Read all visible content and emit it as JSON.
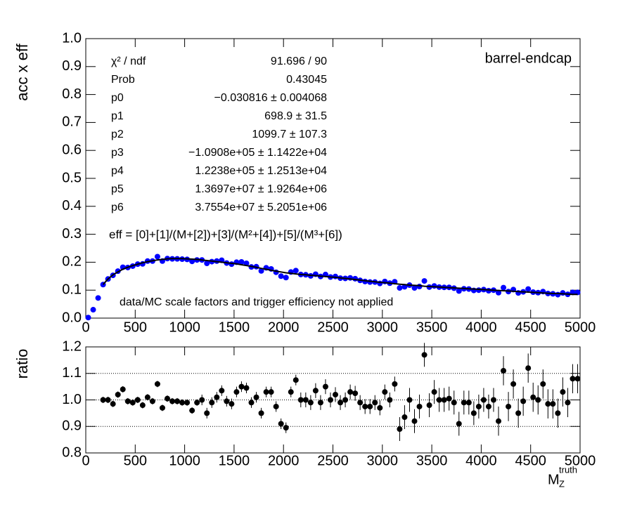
{
  "chart_data": [
    {
      "type": "scatter",
      "y_label": "acc x eff",
      "label": "barrel-endcap",
      "note": "data/MC scale factors and trigger efficiency not applied",
      "formula": "eff = [0]+[1]/(M+[2])+[3]/(M²+[4])+[5]/(M³+[6])",
      "stats": [
        [
          "χ² / ndf",
          "91.696 / 90"
        ],
        [
          "Prob",
          "0.43045"
        ],
        [
          "p0",
          "−0.030816 ± 0.004068"
        ],
        [
          "p1",
          "698.9 ± 31.5"
        ],
        [
          "p2",
          "1099.7 ± 107.3"
        ],
        [
          "p3",
          "−1.0908e+05 ± 1.1422e+04"
        ],
        [
          "p4",
          "1.2238e+05 ± 1.2513e+04"
        ],
        [
          "p5",
          "1.3697e+07 ± 1.9264e+06"
        ],
        [
          "p6",
          "3.7554e+07 ± 5.2051e+06"
        ]
      ],
      "xlim": [
        0,
        5000
      ],
      "xticks": [
        0,
        500,
        1000,
        1500,
        2000,
        2500,
        3000,
        3500,
        4000,
        4500,
        5000
      ],
      "ylim": [
        0,
        1
      ],
      "yticks": [
        {
          "value": 0,
          "label": "0.0"
        },
        0.1,
        0.2,
        0.3,
        0.4,
        0.5,
        0.6,
        0.7,
        0.8,
        0.9,
        {
          "value": 1,
          "label": "1.0"
        }
      ],
      "grid": false,
      "x": [
        25,
        75,
        125,
        175,
        225,
        275,
        325,
        375,
        425,
        475,
        525,
        575,
        625,
        675,
        725,
        775,
        825,
        875,
        925,
        975,
        1025,
        1075,
        1125,
        1175,
        1225,
        1275,
        1325,
        1375,
        1425,
        1475,
        1525,
        1575,
        1625,
        1675,
        1725,
        1775,
        1825,
        1875,
        1925,
        1975,
        2025,
        2075,
        2125,
        2175,
        2225,
        2275,
        2325,
        2375,
        2425,
        2475,
        2525,
        2575,
        2625,
        2675,
        2725,
        2775,
        2825,
        2875,
        2925,
        2975,
        3025,
        3075,
        3125,
        3175,
        3225,
        3275,
        3325,
        3375,
        3425,
        3475,
        3525,
        3575,
        3625,
        3675,
        3725,
        3775,
        3825,
        3875,
        3925,
        3975,
        4025,
        4075,
        4125,
        4175,
        4225,
        4275,
        4325,
        4375,
        4425,
        4475,
        4525,
        4575,
        4625,
        4675,
        4725,
        4775,
        4825,
        4875,
        4925,
        4975
      ],
      "series": [
        {
          "color": "#0000ff",
          "values": [
            0.002,
            0.03,
            0.072,
            0.12,
            0.14,
            0.153,
            0.168,
            0.182,
            0.181,
            0.186,
            0.193,
            0.194,
            0.204,
            0.204,
            0.22,
            0.204,
            0.213,
            0.212,
            0.212,
            0.211,
            0.21,
            0.203,
            0.208,
            0.208,
            0.196,
            0.202,
            0.204,
            0.207,
            0.197,
            0.193,
            0.2,
            0.201,
            0.196,
            0.183,
            0.184,
            0.169,
            0.18,
            0.176,
            0.164,
            0.15,
            0.145,
            0.165,
            0.17,
            0.156,
            0.155,
            0.151,
            0.157,
            0.149,
            0.156,
            0.147,
            0.149,
            0.143,
            0.142,
            0.144,
            0.141,
            0.135,
            0.131,
            0.129,
            0.129,
            0.124,
            0.131,
            0.125,
            0.13,
            0.108,
            0.112,
            0.118,
            0.108,
            0.113,
            0.133,
            0.111,
            0.115,
            0.111,
            0.11,
            0.11,
            0.107,
            0.097,
            0.105,
            0.104,
            0.099,
            0.1,
            0.102,
            0.098,
            0.1,
            0.091,
            0.109,
            0.095,
            0.102,
            0.09,
            0.094,
            0.104,
            0.093,
            0.091,
            0.095,
            0.088,
            0.087,
            0.084,
            0.09,
            0.085,
            0.092,
            0.092
          ]
        },
        {
          "color": "#000000",
          "style": "line",
          "values": [
            null,
            null,
            null,
            0.12,
            0.14,
            0.155,
            0.165,
            0.175,
            0.182,
            0.188,
            0.193,
            0.198,
            0.202,
            0.205,
            0.208,
            0.21,
            0.212,
            0.213,
            0.213,
            0.213,
            0.212,
            0.211,
            0.21,
            0.208,
            0.206,
            0.204,
            0.202,
            0.2,
            0.198,
            0.196,
            0.194,
            0.191,
            0.188,
            0.185,
            0.182,
            0.178,
            0.175,
            0.171,
            0.168,
            0.165,
            0.162,
            0.16,
            0.158,
            0.156,
            0.155,
            0.153,
            0.152,
            0.15,
            0.149,
            0.147,
            0.146,
            0.144,
            0.142,
            0.14,
            0.138,
            0.136,
            0.134,
            0.132,
            0.13,
            0.128,
            0.127,
            0.125,
            0.123,
            0.121,
            0.12,
            0.118,
            0.117,
            0.116,
            0.114,
            0.113,
            0.112,
            0.111,
            0.11,
            0.109,
            0.108,
            0.107,
            0.106,
            0.105,
            0.104,
            0.103,
            0.102,
            0.101,
            0.1,
            0.099,
            0.098,
            0.097,
            0.096,
            0.095,
            0.094,
            0.093,
            0.092,
            0.091,
            0.09,
            0.089,
            0.088,
            0.088,
            0.087,
            0.086,
            0.085,
            0.085
          ]
        }
      ]
    },
    {
      "type": "scatter",
      "y_label": "ratio",
      "x_label": {
        "symbol": "M",
        "subscript": "Z",
        "superscript": "truth"
      },
      "xlim": [
        0,
        5000
      ],
      "xticks": [
        0,
        500,
        1000,
        1500,
        2000,
        2500,
        3000,
        3500,
        4000,
        4500,
        5000
      ],
      "ylim": [
        0.8,
        1.2
      ],
      "yticks": [
        0.8,
        0.9,
        {
          "value": 1,
          "label": "1.0"
        },
        1.1,
        1.2
      ],
      "grid": true,
      "x": [
        25,
        75,
        125,
        175,
        225,
        275,
        325,
        375,
        425,
        475,
        525,
        575,
        625,
        675,
        725,
        775,
        825,
        875,
        925,
        975,
        1025,
        1075,
        1125,
        1175,
        1225,
        1275,
        1325,
        1375,
        1425,
        1475,
        1525,
        1575,
        1625,
        1675,
        1725,
        1775,
        1825,
        1875,
        1925,
        1975,
        2025,
        2075,
        2125,
        2175,
        2225,
        2275,
        2325,
        2375,
        2425,
        2475,
        2525,
        2575,
        2625,
        2675,
        2725,
        2775,
        2825,
        2875,
        2925,
        2975,
        3025,
        3075,
        3125,
        3175,
        3225,
        3275,
        3325,
        3375,
        3425,
        3475,
        3525,
        3575,
        3625,
        3675,
        3725,
        3775,
        3825,
        3875,
        3925,
        3975,
        4025,
        4075,
        4125,
        4175,
        4225,
        4275,
        4325,
        4375,
        4425,
        4475,
        4525,
        4575,
        4625,
        4675,
        4725,
        4775,
        4825,
        4875,
        4925,
        4975
      ],
      "series": [
        {
          "color": "#000000",
          "values": [
            null,
            null,
            null,
            1.0,
            1.0,
            0.985,
            1.02,
            1.04,
            0.995,
            0.99,
            1.0,
            0.98,
            1.01,
            0.995,
            1.06,
            0.97,
            1.005,
            0.995,
            0.995,
            0.99,
            0.99,
            0.96,
            0.99,
            1.0,
            0.95,
            0.99,
            1.01,
            1.035,
            0.995,
            0.985,
            1.03,
            1.05,
            1.045,
            0.99,
            1.01,
            0.95,
            1.03,
            1.03,
            0.975,
            0.91,
            0.895,
            1.03,
            1.075,
            1.0,
            1.0,
            0.99,
            1.035,
            0.99,
            1.05,
            1.0,
            1.02,
            0.99,
            1.0,
            1.03,
            1.025,
            0.99,
            0.975,
            0.975,
            0.99,
            0.97,
            1.03,
            1.0,
            1.06,
            0.89,
            0.935,
            1.0,
            0.92,
            0.975,
            1.17,
            0.98,
            1.03,
            1.0,
            1.0,
            1.005,
            0.99,
            0.91,
            0.99,
            0.99,
            0.95,
            0.975,
            1.0,
            0.975,
            1.0,
            0.92,
            1.11,
            0.975,
            1.06,
            0.95,
            0.995,
            1.12,
            1.01,
            1.0,
            1.06,
            0.985,
            0.985,
            0.95,
            1.03,
            0.99,
            1.08,
            1.08
          ],
          "errors": [
            null,
            null,
            null,
            0.012,
            0.012,
            0.012,
            0.012,
            0.012,
            0.012,
            0.012,
            0.012,
            0.012,
            0.012,
            0.012,
            0.012,
            0.012,
            0.012,
            0.012,
            0.012,
            0.012,
            0.012,
            0.012,
            0.012,
            0.02,
            0.02,
            0.02,
            0.02,
            0.02,
            0.02,
            0.02,
            0.02,
            0.02,
            0.02,
            0.02,
            0.02,
            0.02,
            0.02,
            0.02,
            0.02,
            0.02,
            0.02,
            0.02,
            0.02,
            0.028,
            0.028,
            0.028,
            0.028,
            0.028,
            0.028,
            0.028,
            0.028,
            0.028,
            0.028,
            0.028,
            0.028,
            0.028,
            0.028,
            0.028,
            0.028,
            0.028,
            0.028,
            0.028,
            0.028,
            0.045,
            0.045,
            0.045,
            0.045,
            0.045,
            0.045,
            0.045,
            0.045,
            0.045,
            0.045,
            0.045,
            0.045,
            0.045,
            0.045,
            0.045,
            0.045,
            0.045,
            0.045,
            0.045,
            0.045,
            0.055,
            0.055,
            0.055,
            0.055,
            0.055,
            0.055,
            0.055,
            0.055,
            0.055,
            0.055,
            0.055,
            0.055,
            0.055,
            0.055,
            0.055,
            0.055,
            0.055
          ]
        }
      ]
    }
  ]
}
